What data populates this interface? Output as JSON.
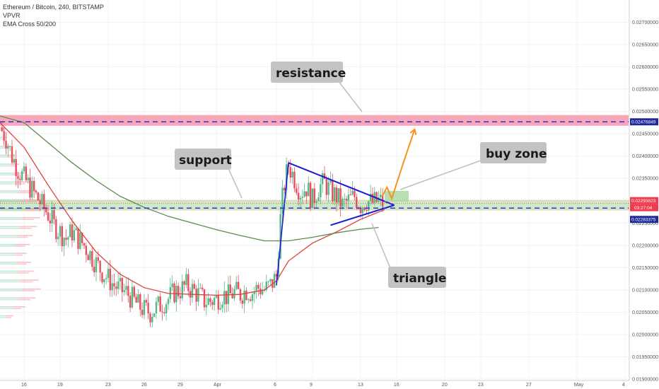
{
  "legend": {
    "symbol_line": "Ethereum / Bitcoin, 240, BITSTAMP",
    "indicator_1": "VPVR",
    "indicator_2": "EMA Cross 50/200"
  },
  "annotations": {
    "resistance": "resistance",
    "support": "support",
    "buy_zone": "buy zone",
    "triangle": "triangle"
  },
  "price_tags": {
    "resistance_price": "0.02476849",
    "last_price": "0.02293823",
    "countdown": "03:27:04",
    "support_price": "0.02283375"
  },
  "colors": {
    "bull": "#53b987",
    "bear": "#eb4d5c",
    "ema50": "#e0403c",
    "ema200": "#5b8c4e",
    "triangle": "#1a1ad6",
    "projection": "#f7931a",
    "resistance_band": "#f58aa0",
    "support_band": "#b7e0b0",
    "dashed_level": "#2a32d8"
  },
  "chart_data": {
    "type": "candlestick",
    "title": "Ethereum / Bitcoin, 240, BITSTAMP",
    "ylim": [
      0.019,
      0.0275
    ],
    "y_ticks": [
      0.027,
      0.0265,
      0.026,
      0.0255,
      0.025,
      0.0245,
      0.024,
      0.0235,
      0.023,
      0.0225,
      0.022,
      0.0215,
      0.021,
      0.0205,
      0.02,
      0.0195,
      0.019
    ],
    "y_tick_labels": [
      "0.02700000",
      "0.02650000",
      "0.02600000",
      "0.02550000",
      "0.02500000",
      "0.02450000",
      "0.02400000",
      "0.02350000",
      "0.02300000",
      "0.02250000",
      "0.02200000",
      "0.02150000",
      "0.02100000",
      "0.02050000",
      "0.02000000",
      "0.01950000",
      "0.01900000"
    ],
    "x_ticks": [
      "16",
      "19",
      "23",
      "26",
      "29",
      "Apr",
      "6",
      "9",
      "13",
      "16",
      "20",
      "23",
      "27",
      "May",
      "4"
    ],
    "x_tick_days": [
      16,
      19,
      23,
      26,
      29,
      32,
      37,
      40,
      44,
      47,
      51,
      54,
      58,
      62,
      66
    ],
    "x_day_range": [
      14.0,
      66.3
    ],
    "levels": {
      "resistance": 0.02476849,
      "last": 0.02293823,
      "support": 0.02283375,
      "resistance_band": [
        0.02468,
        0.02492
      ],
      "support_band": [
        0.02279,
        0.02301
      ]
    },
    "price_path": [
      [
        14.0,
        0.02465
      ],
      [
        14.5,
        0.0244
      ],
      [
        15.0,
        0.024
      ],
      [
        15.5,
        0.0237
      ],
      [
        16.0,
        0.0235
      ],
      [
        16.5,
        0.0233
      ],
      [
        17.0,
        0.0231
      ],
      [
        17.5,
        0.0229
      ],
      [
        18.0,
        0.0227
      ],
      [
        18.5,
        0.02245
      ],
      [
        19.0,
        0.0223
      ],
      [
        19.5,
        0.02215
      ],
      [
        20.0,
        0.0223
      ],
      [
        20.5,
        0.02215
      ],
      [
        21.0,
        0.022
      ],
      [
        21.5,
        0.0218
      ],
      [
        22.0,
        0.0216
      ],
      [
        22.5,
        0.0214
      ],
      [
        23.0,
        0.02125
      ],
      [
        23.5,
        0.0211
      ],
      [
        24.0,
        0.021
      ],
      [
        24.5,
        0.02095
      ],
      [
        25.0,
        0.0208
      ],
      [
        25.5,
        0.02065
      ],
      [
        26.0,
        0.02055
      ],
      [
        26.5,
        0.0205
      ],
      [
        27.0,
        0.0206
      ],
      [
        27.5,
        0.0207
      ],
      [
        28.0,
        0.0208
      ],
      [
        28.5,
        0.02095
      ],
      [
        29.0,
        0.021
      ],
      [
        29.5,
        0.0211
      ],
      [
        30.0,
        0.021
      ],
      [
        30.5,
        0.0209
      ],
      [
        31.0,
        0.02075
      ],
      [
        31.5,
        0.02075
      ],
      [
        32.0,
        0.0208
      ],
      [
        32.5,
        0.0209
      ],
      [
        33.0,
        0.02085
      ],
      [
        33.5,
        0.02095
      ],
      [
        34.0,
        0.0209
      ],
      [
        34.5,
        0.021
      ],
      [
        35.0,
        0.02095
      ],
      [
        35.5,
        0.02105
      ],
      [
        36.0,
        0.021
      ],
      [
        36.5,
        0.0211
      ],
      [
        37.0,
        0.0213
      ],
      [
        37.3,
        0.0225
      ],
      [
        37.6,
        0.0233
      ],
      [
        38.0,
        0.0238
      ],
      [
        38.5,
        0.0235
      ],
      [
        39.0,
        0.0232
      ],
      [
        39.5,
        0.0233
      ],
      [
        40.0,
        0.023
      ],
      [
        40.5,
        0.0233
      ],
      [
        41.0,
        0.0234
      ],
      [
        41.5,
        0.0232
      ],
      [
        42.0,
        0.0231
      ],
      [
        42.5,
        0.0229
      ],
      [
        43.0,
        0.023
      ],
      [
        43.5,
        0.0231
      ],
      [
        44.0,
        0.0229
      ],
      [
        44.5,
        0.023
      ],
      [
        45.0,
        0.02295
      ],
      [
        45.5,
        0.023
      ],
      [
        45.9,
        0.02294
      ]
    ],
    "series": [
      {
        "name": "EMA 50",
        "points": [
          [
            14,
            0.02475
          ],
          [
            16,
            0.0242
          ],
          [
            18,
            0.02335
          ],
          [
            20,
            0.02255
          ],
          [
            22,
            0.02185
          ],
          [
            24,
            0.02135
          ],
          [
            26,
            0.02105
          ],
          [
            28,
            0.02092
          ],
          [
            30,
            0.0209
          ],
          [
            32,
            0.02088
          ],
          [
            34,
            0.0209
          ],
          [
            36,
            0.021
          ],
          [
            37,
            0.0212
          ],
          [
            38,
            0.02165
          ],
          [
            40,
            0.02205
          ],
          [
            42,
            0.0223
          ],
          [
            44,
            0.02258
          ],
          [
            46,
            0.0228
          ]
        ]
      },
      {
        "name": "EMA 200",
        "points": [
          [
            14,
            0.0249
          ],
          [
            16,
            0.02475
          ],
          [
            18,
            0.0243
          ],
          [
            20,
            0.02385
          ],
          [
            22,
            0.02345
          ],
          [
            24,
            0.0231
          ],
          [
            26,
            0.02285
          ],
          [
            28,
            0.02265
          ],
          [
            30,
            0.0225
          ],
          [
            32,
            0.02235
          ],
          [
            34,
            0.02222
          ],
          [
            36,
            0.0221
          ],
          [
            38,
            0.0221
          ],
          [
            40,
            0.02218
          ],
          [
            42,
            0.02228
          ],
          [
            44,
            0.02236
          ],
          [
            45.5,
            0.0224
          ]
        ]
      }
    ],
    "drawings": {
      "triangle_upper": [
        [
          38.0,
          0.02385
        ],
        [
          46.8,
          0.0229
        ]
      ],
      "triangle_lower": [
        [
          41.5,
          0.02245
        ],
        [
          46.8,
          0.0229
        ]
      ],
      "triangle_left": [
        [
          37.0,
          0.0211
        ],
        [
          38.0,
          0.02385
        ]
      ],
      "projection": [
        [
          45.8,
          0.0231
        ],
        [
          46.2,
          0.0233
        ],
        [
          46.6,
          0.02305
        ],
        [
          47.5,
          0.0238
        ],
        [
          48.5,
          0.0246
        ]
      ],
      "buy_zone_box": [
        [
          46.0,
          0.02298
        ],
        [
          48.0,
          0.02322
        ]
      ]
    },
    "volume_profile_bins": [
      [
        0.0246,
        0.07
      ],
      [
        0.0244,
        0.1
      ],
      [
        0.0242,
        0.14
      ],
      [
        0.024,
        0.2
      ],
      [
        0.0238,
        0.26
      ],
      [
        0.0236,
        0.32
      ],
      [
        0.0234,
        0.4
      ],
      [
        0.0232,
        0.48
      ],
      [
        0.023,
        0.58
      ],
      [
        0.0228,
        0.66
      ],
      [
        0.0226,
        0.54
      ],
      [
        0.0224,
        0.5
      ],
      [
        0.0222,
        0.44
      ],
      [
        0.022,
        0.4
      ],
      [
        0.0218,
        0.36
      ],
      [
        0.0216,
        0.42
      ],
      [
        0.0214,
        0.46
      ],
      [
        0.0212,
        0.52
      ],
      [
        0.021,
        0.55
      ],
      [
        0.0208,
        0.48
      ],
      [
        0.0206,
        0.34
      ],
      [
        0.0204,
        0.18
      ]
    ]
  }
}
